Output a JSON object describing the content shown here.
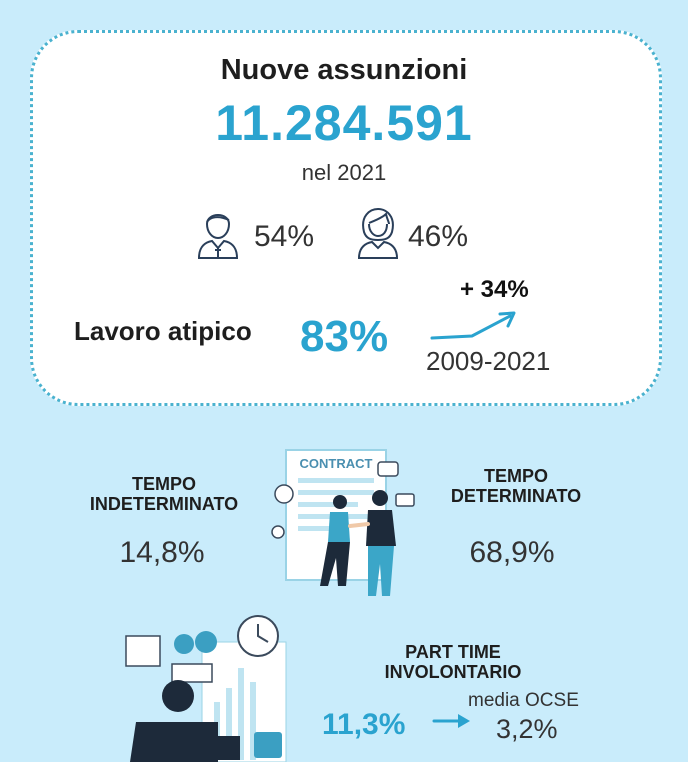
{
  "header": {
    "title": "Nuove assunzioni",
    "total_hires": "11.284.591",
    "year_label": "nel 2021"
  },
  "gender": {
    "male_pct": "54%",
    "female_pct": "46%",
    "male_icon": "man-user-icon",
    "female_icon": "woman-user-icon"
  },
  "atypical": {
    "label": "Lavoro atipico",
    "value": "83%",
    "growth": "+ 34%",
    "period": "2009-2021",
    "trend_icon": "trend-up-arrow-icon"
  },
  "contracts": {
    "illustration_text": "CONTRACT",
    "permanent": {
      "label_line1": "TEMPO",
      "label_line2": "INDETERMINATO",
      "value": "14,8%"
    },
    "fixed_term": {
      "label_line1": "TEMPO",
      "label_line2": "DETERMINATO",
      "value": "68,9%"
    }
  },
  "part_time": {
    "label_line1": "PART TIME",
    "label_line2": "INVOLONTARIO",
    "value": "11,3%",
    "ocse_label": "media OCSE",
    "ocse_value": "3,2%",
    "arrow_icon": "arrow-right-icon"
  },
  "colors": {
    "background": "#c9ecfb",
    "accent": "#2aa3cf",
    "card": "#ffffff"
  }
}
